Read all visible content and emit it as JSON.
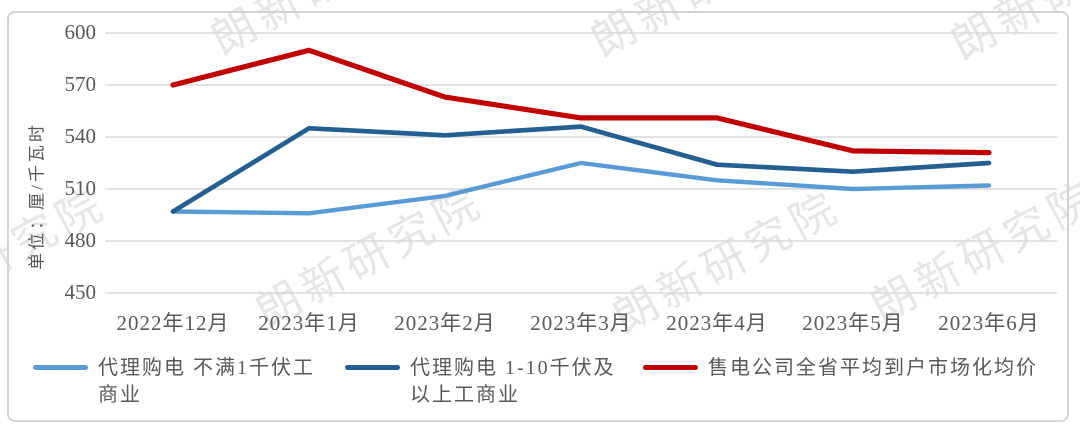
{
  "watermark": {
    "text": "朗新研究院"
  },
  "chart_data": {
    "type": "line",
    "title": "",
    "ylabel": "单位：厘/千瓦时",
    "xlabel": "",
    "ylim": [
      450,
      600
    ],
    "ytick_step": 30,
    "grid": true,
    "legend_position": "bottom",
    "categories": [
      "2022年12月",
      "2023年1月",
      "2023年2月",
      "2023年3月",
      "2023年4月",
      "2023年5月",
      "2023年6月"
    ],
    "series": [
      {
        "name": "代理购电 不满1千伏工商业",
        "legend_label": "代理购电 不满1千伏工\n商业",
        "color": "#5B9BD5",
        "values": [
          497,
          496,
          506,
          525,
          515,
          510,
          512
        ]
      },
      {
        "name": "代理购电 1-10千伏及以上工商业",
        "legend_label": "代理购电 1-10千伏及\n以上工商业",
        "color": "#255E91",
        "values": [
          497,
          545,
          541,
          546,
          524,
          520,
          525
        ]
      },
      {
        "name": "售电公司全省平均到户市场化均价",
        "legend_label": "售电公司全省平均到户市场化均价",
        "color": "#C00000",
        "values": [
          570,
          590,
          563,
          551,
          551,
          532,
          531
        ]
      }
    ],
    "colors": {
      "grid": "#D9D9D9",
      "axis_text": "#595959",
      "frame_border": "#D3D3D3",
      "watermark": "#D2D2D2"
    }
  }
}
